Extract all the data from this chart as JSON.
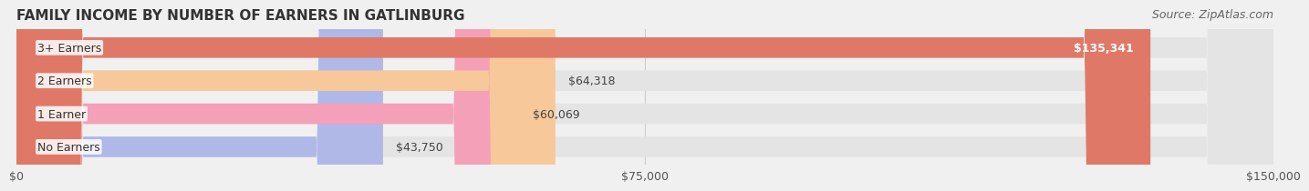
{
  "title": "FAMILY INCOME BY NUMBER OF EARNERS IN GATLINBURG",
  "source": "Source: ZipAtlas.com",
  "categories": [
    "No Earners",
    "1 Earner",
    "2 Earners",
    "3+ Earners"
  ],
  "values": [
    43750,
    60069,
    64318,
    135341
  ],
  "bar_colors": [
    "#b0b8e8",
    "#f4a0b8",
    "#f7c89a",
    "#e07868"
  ],
  "bar_edge_colors": [
    "#c8ccf0",
    "#f8b8cc",
    "#fad4a8",
    "#e88878"
  ],
  "value_labels": [
    "$43,750",
    "$60,069",
    "$64,318",
    "$135,341"
  ],
  "xlim": [
    0,
    150000
  ],
  "xticks": [
    0,
    75000,
    150000
  ],
  "xticklabels": [
    "$0",
    "$75,000",
    "$150,000"
  ],
  "background_color": "#f0f0f0",
  "bar_bg_color": "#e8e8e8",
  "title_fontsize": 11,
  "source_fontsize": 9,
  "label_fontsize": 9,
  "value_fontsize": 9
}
